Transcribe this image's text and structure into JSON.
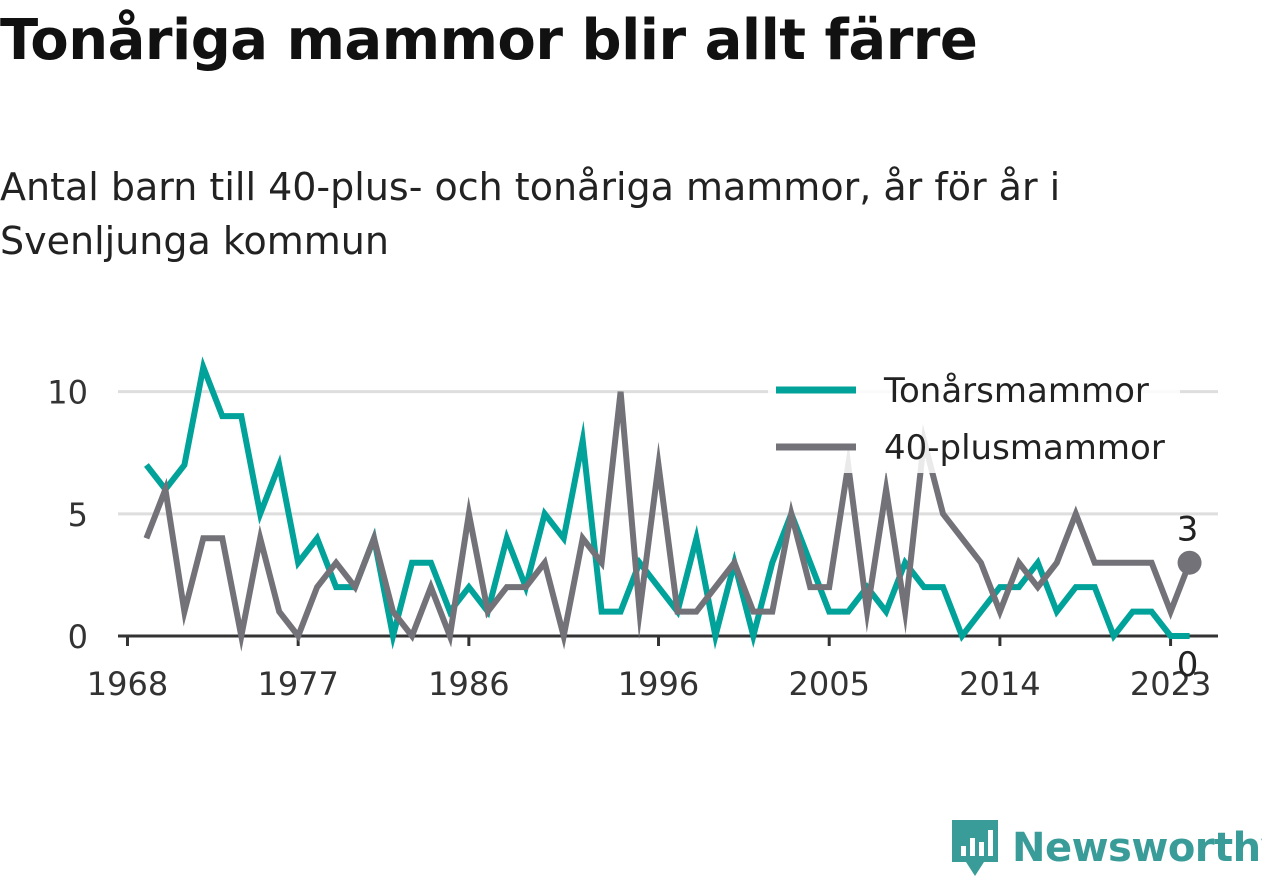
{
  "header": {
    "title": "Tonåriga mammor blir allt färre",
    "subtitle": "Antal barn till 40-plus- och tonåriga mammor, år för år i Svenljunga kommun"
  },
  "brand": {
    "name": "Newsworthy"
  },
  "chart_data": {
    "type": "line",
    "x": [
      1969,
      1970,
      1971,
      1972,
      1973,
      1974,
      1975,
      1976,
      1977,
      1978,
      1979,
      1980,
      1981,
      1982,
      1983,
      1984,
      1985,
      1986,
      1987,
      1988,
      1989,
      1990,
      1991,
      1992,
      1993,
      1994,
      1995,
      1996,
      1997,
      1998,
      1999,
      2000,
      2001,
      2002,
      2003,
      2004,
      2005,
      2006,
      2007,
      2008,
      2009,
      2010,
      2011,
      2012,
      2013,
      2014,
      2015,
      2016,
      2017,
      2018,
      2019,
      2020,
      2021,
      2022,
      2023,
      2024
    ],
    "series": [
      {
        "name": "Tonårsmammor",
        "color": "#00a29a",
        "values": [
          7,
          6,
          7,
          11,
          9,
          9,
          5,
          7,
          3,
          4,
          2,
          2,
          4,
          0,
          3,
          3,
          1,
          2,
          1,
          4,
          2,
          5,
          4,
          8,
          1,
          1,
          3,
          2,
          1,
          4,
          0,
          3,
          0,
          3,
          5,
          3,
          1,
          1,
          2,
          1,
          3,
          2,
          2,
          0,
          1,
          2,
          2,
          3,
          1,
          2,
          2,
          0,
          1,
          1,
          0,
          0
        ],
        "end_label": "0"
      },
      {
        "name": "40-plusmammor",
        "color": "#737278",
        "values": [
          4,
          6,
          1,
          4,
          4,
          0,
          4,
          1,
          0,
          2,
          3,
          2,
          4,
          1,
          0,
          2,
          0,
          5,
          1,
          2,
          2,
          3,
          0,
          4,
          3,
          10,
          1,
          7,
          1,
          1,
          2,
          3,
          1,
          1,
          5,
          2,
          2,
          7,
          1,
          6,
          1,
          8,
          5,
          4,
          3,
          1,
          3,
          2,
          3,
          5,
          3,
          3,
          3,
          3,
          1,
          3
        ],
        "end_label": "3"
      }
    ],
    "xticks": [
      1968,
      1977,
      1986,
      1996,
      2005,
      2014,
      2023
    ],
    "yticks": [
      0,
      5,
      10
    ],
    "xlim": [
      1967.5,
      2025.5
    ],
    "ylim": [
      0,
      11.5
    ],
    "grid": "horizontal",
    "legend": "top-right"
  }
}
